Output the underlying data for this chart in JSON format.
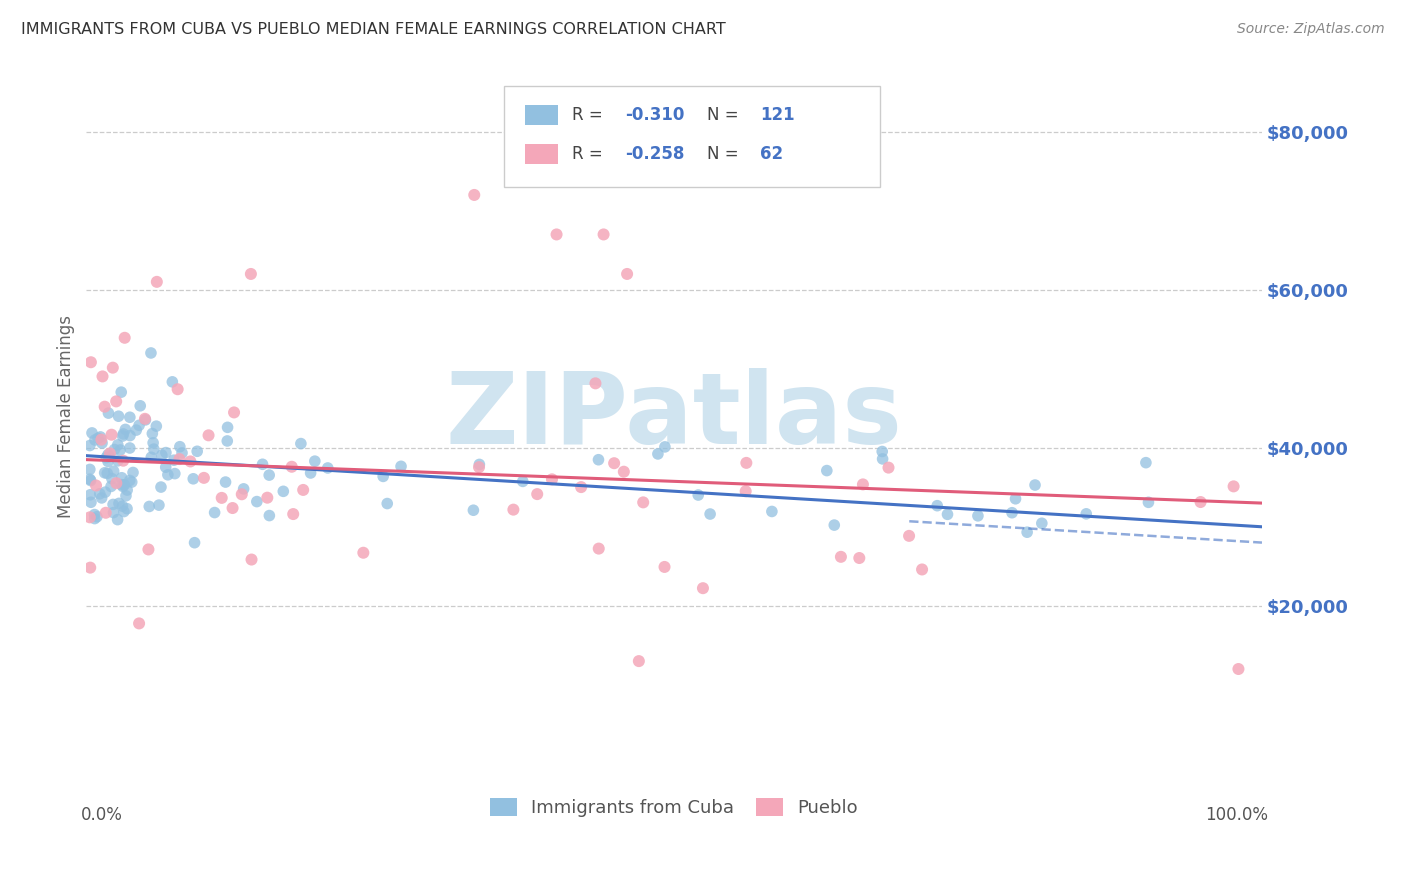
{
  "title": "IMMIGRANTS FROM CUBA VS PUEBLO MEDIAN FEMALE EARNINGS CORRELATION CHART",
  "source": "Source: ZipAtlas.com",
  "ylabel": "Median Female Earnings",
  "ytick_labels": [
    "",
    "$20,000",
    "$40,000",
    "$60,000",
    "$80,000"
  ],
  "ylim": [
    0,
    88000
  ],
  "xlim": [
    0,
    100
  ],
  "legend_labels": [
    "Immigrants from Cuba",
    "Pueblo"
  ],
  "blue_color": "#92c0e0",
  "pink_color": "#f4a7b9",
  "trend_blue_color": "#4472c4",
  "trend_pink_color": "#e05c7a",
  "watermark": "ZIPatlas",
  "watermark_color": "#d0e4f0",
  "title_color": "#333333",
  "axis_label_color": "#4472c4",
  "R_blue": -0.31,
  "N_blue": 121,
  "R_pink": -0.258,
  "N_pink": 62
}
